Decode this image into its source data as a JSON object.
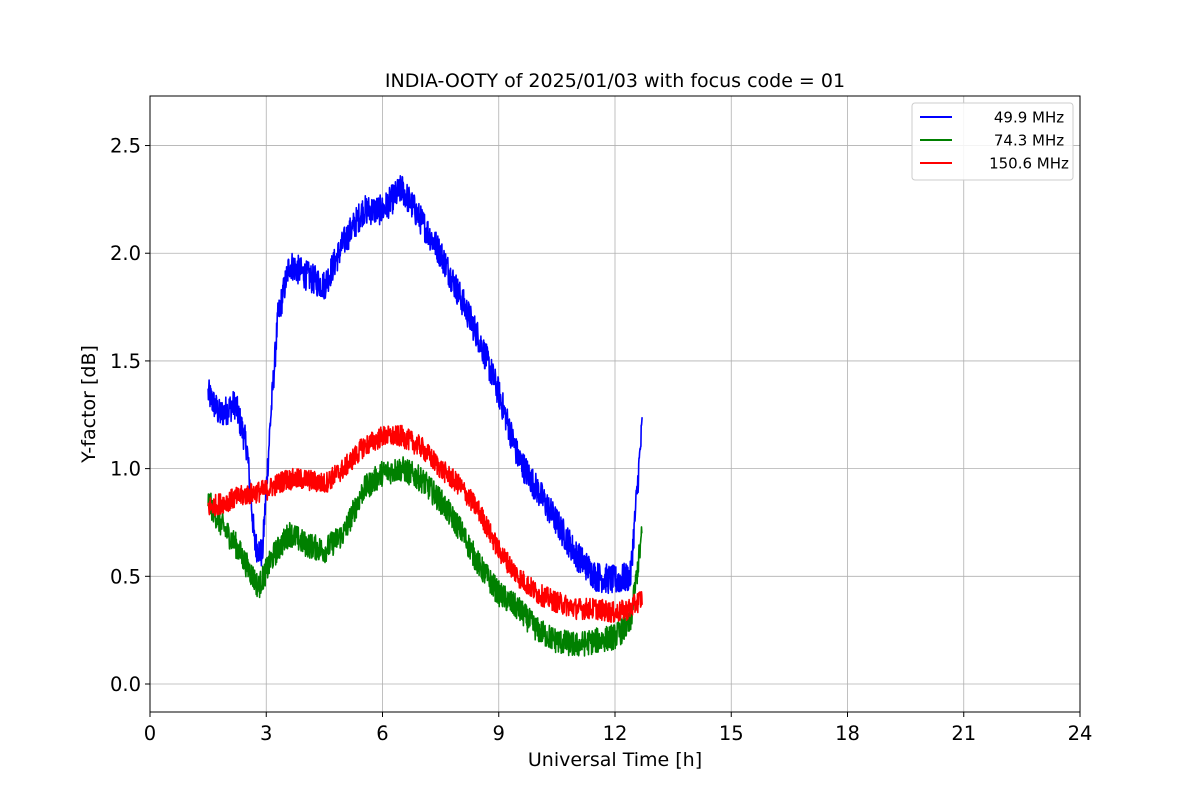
{
  "chart_data": {
    "type": "line",
    "title": "INDIA-OOTY of 2025/01/03 with focus code = 01",
    "xlabel": "Universal Time [h]",
    "ylabel": "Y-factor [dB]",
    "xlim": [
      0,
      24
    ],
    "ylim": [
      -0.13,
      2.73
    ],
    "xticks": [
      0,
      3,
      6,
      9,
      12,
      15,
      18,
      21,
      24
    ],
    "xtick_labels": [
      "0",
      "3",
      "6",
      "9",
      "12",
      "15",
      "18",
      "21",
      "24"
    ],
    "yticks": [
      0.0,
      0.5,
      1.0,
      1.5,
      2.0,
      2.5
    ],
    "ytick_labels": [
      "0.0",
      "0.5",
      "1.0",
      "1.5",
      "2.0",
      "2.5"
    ],
    "grid": true,
    "legend_position": "top-right",
    "series": [
      {
        "name": "49.9 MHz",
        "color": "#0000ff",
        "noise": 0.07,
        "x": [
          1.5,
          1.8,
          2.2,
          2.5,
          2.7,
          2.9,
          3.1,
          3.3,
          3.6,
          4.0,
          4.5,
          5.0,
          5.5,
          6.0,
          6.5,
          7.0,
          7.5,
          8.0,
          8.5,
          9.0,
          9.5,
          10.0,
          10.5,
          11.0,
          11.5,
          12.0,
          12.4,
          12.7
        ],
        "y": [
          1.35,
          1.25,
          1.3,
          1.1,
          0.65,
          0.6,
          1.2,
          1.7,
          1.95,
          1.9,
          1.85,
          2.05,
          2.2,
          2.2,
          2.3,
          2.15,
          2.0,
          1.8,
          1.6,
          1.35,
          1.05,
          0.9,
          0.75,
          0.6,
          0.5,
          0.48,
          0.5,
          1.2
        ]
      },
      {
        "name": "74.3 MHz",
        "color": "#008000",
        "noise": 0.06,
        "x": [
          1.5,
          1.8,
          2.2,
          2.5,
          2.8,
          3.2,
          3.6,
          4.0,
          4.5,
          5.0,
          5.5,
          6.0,
          6.5,
          7.0,
          7.5,
          8.0,
          8.5,
          9.0,
          9.5,
          10.0,
          10.5,
          11.0,
          11.5,
          12.0,
          12.4,
          12.7
        ],
        "y": [
          0.85,
          0.75,
          0.65,
          0.55,
          0.45,
          0.6,
          0.7,
          0.65,
          0.62,
          0.7,
          0.9,
          0.98,
          1.0,
          0.95,
          0.85,
          0.72,
          0.55,
          0.42,
          0.35,
          0.25,
          0.2,
          0.18,
          0.2,
          0.22,
          0.28,
          0.7
        ]
      },
      {
        "name": "150.6 MHz",
        "color": "#ff0000",
        "noise": 0.05,
        "x": [
          1.5,
          2.0,
          2.5,
          3.0,
          3.5,
          4.0,
          4.5,
          5.0,
          5.5,
          6.0,
          6.5,
          7.0,
          7.5,
          8.0,
          8.5,
          9.0,
          9.5,
          10.0,
          10.5,
          11.0,
          11.5,
          12.0,
          12.4,
          12.7
        ],
        "y": [
          0.82,
          0.85,
          0.88,
          0.9,
          0.95,
          0.95,
          0.93,
          1.0,
          1.1,
          1.15,
          1.15,
          1.1,
          1.0,
          0.92,
          0.8,
          0.62,
          0.5,
          0.42,
          0.38,
          0.35,
          0.35,
          0.33,
          0.35,
          0.4
        ]
      }
    ]
  }
}
